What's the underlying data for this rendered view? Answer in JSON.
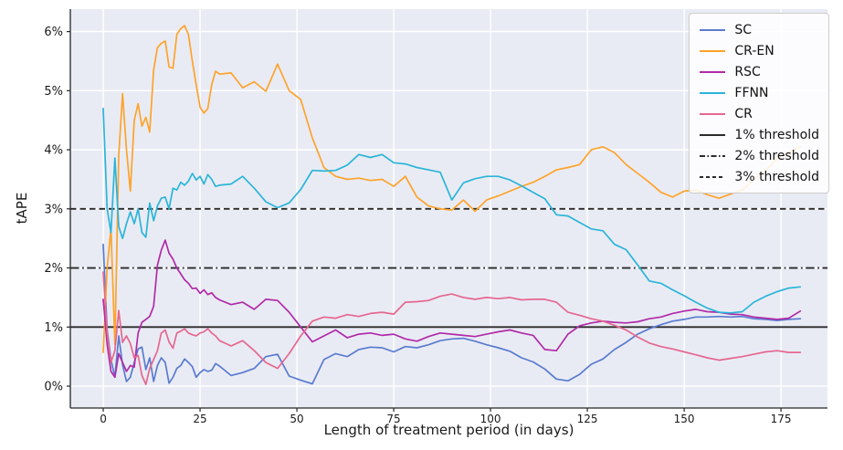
{
  "figure": {
    "background": "#ffffff",
    "plot_background": "#e9ebf4",
    "grid_color": "#ffffff",
    "spine_color": "#262626",
    "tick_color": "#262626",
    "text_color": "#1a1a1a",
    "legend_background": "rgba(255,255,255,0.85)",
    "legend_border": "#cccccc"
  },
  "chart_data": {
    "type": "line",
    "title": "",
    "xlabel": "Length of treatment period (in days)",
    "ylabel": "tAPE",
    "xlim": [
      -8.5,
      187
    ],
    "ylim": [
      -0.37,
      6.38
    ],
    "x_ticks": [
      0,
      25,
      50,
      75,
      100,
      125,
      150,
      175
    ],
    "x_tick_labels": [
      "0",
      "25",
      "50",
      "75",
      "100",
      "125",
      "150",
      "175"
    ],
    "y_ticks": [
      0,
      1,
      2,
      3,
      4,
      5,
      6
    ],
    "y_tick_labels": [
      "0%",
      "1%",
      "2%",
      "3%",
      "4%",
      "5%",
      "6%"
    ],
    "grid": true,
    "legend_position": "upper right",
    "x": [
      0,
      1,
      2,
      3,
      4,
      5,
      6,
      7,
      8,
      9,
      10,
      11,
      12,
      13,
      14,
      15,
      16,
      17,
      18,
      19,
      20,
      21,
      22,
      23,
      24,
      25,
      26,
      27,
      28,
      29,
      30,
      33,
      36,
      39,
      42,
      45,
      48,
      51,
      54,
      57,
      60,
      63,
      66,
      69,
      72,
      75,
      78,
      81,
      84,
      87,
      90,
      93,
      96,
      99,
      102,
      105,
      108,
      111,
      114,
      117,
      120,
      123,
      126,
      129,
      132,
      135,
      138,
      141,
      144,
      147,
      150,
      153,
      156,
      159,
      162,
      165,
      168,
      171,
      174,
      177,
      180
    ],
    "series": [
      {
        "name": "SC",
        "color": "#597bd0",
        "values": [
          2.4,
          0.95,
          0.45,
          0.15,
          0.85,
          0.36,
          0.08,
          0.15,
          0.4,
          0.63,
          0.66,
          0.28,
          0.48,
          0.08,
          0.35,
          0.48,
          0.4,
          0.05,
          0.15,
          0.3,
          0.35,
          0.46,
          0.4,
          0.33,
          0.15,
          0.23,
          0.28,
          0.25,
          0.27,
          0.38,
          0.34,
          0.18,
          0.23,
          0.3,
          0.5,
          0.54,
          0.17,
          0.1,
          0.04,
          0.45,
          0.55,
          0.5,
          0.62,
          0.66,
          0.65,
          0.58,
          0.67,
          0.65,
          0.7,
          0.77,
          0.8,
          0.81,
          0.76,
          0.7,
          0.65,
          0.59,
          0.48,
          0.41,
          0.29,
          0.12,
          0.09,
          0.2,
          0.37,
          0.46,
          0.62,
          0.74,
          0.88,
          0.97,
          1.04,
          1.1,
          1.13,
          1.17,
          1.17,
          1.18,
          1.17,
          1.18,
          1.14,
          1.13,
          1.11,
          1.13,
          1.14
        ]
      },
      {
        "name": "CR-EN",
        "color": "#fda32b",
        "values": [
          0.57,
          2.0,
          2.67,
          0.7,
          3.9,
          4.95,
          4.0,
          3.3,
          4.5,
          4.78,
          4.4,
          4.55,
          4.3,
          5.35,
          5.73,
          5.8,
          5.84,
          5.4,
          5.38,
          5.95,
          6.05,
          6.1,
          5.95,
          5.5,
          5.1,
          4.72,
          4.62,
          4.7,
          5.1,
          5.33,
          5.28,
          5.3,
          5.05,
          5.15,
          4.99,
          5.45,
          5.0,
          4.85,
          4.2,
          3.7,
          3.55,
          3.5,
          3.52,
          3.48,
          3.5,
          3.38,
          3.55,
          3.2,
          3.05,
          3.0,
          2.98,
          3.15,
          2.96,
          3.15,
          3.22,
          3.3,
          3.38,
          3.45,
          3.55,
          3.66,
          3.7,
          3.75,
          4.0,
          4.05,
          3.95,
          3.75,
          3.6,
          3.45,
          3.28,
          3.2,
          3.3,
          3.32,
          3.24,
          3.18,
          3.25,
          3.32,
          3.5,
          3.65,
          3.85,
          3.96,
          4.05
        ]
      },
      {
        "name": "RSC",
        "color": "#b02ba8",
        "values": [
          1.47,
          0.71,
          0.25,
          0.15,
          0.55,
          0.4,
          0.25,
          0.35,
          0.32,
          0.9,
          1.08,
          1.13,
          1.18,
          1.35,
          2.05,
          2.3,
          2.47,
          2.25,
          2.15,
          2.0,
          1.9,
          1.8,
          1.74,
          1.65,
          1.66,
          1.57,
          1.63,
          1.55,
          1.58,
          1.5,
          1.46,
          1.38,
          1.42,
          1.3,
          1.47,
          1.45,
          1.25,
          1.0,
          0.75,
          0.85,
          0.95,
          0.82,
          0.88,
          0.9,
          0.86,
          0.88,
          0.8,
          0.76,
          0.84,
          0.9,
          0.88,
          0.86,
          0.84,
          0.88,
          0.92,
          0.95,
          0.9,
          0.86,
          0.62,
          0.6,
          0.88,
          1.02,
          1.07,
          1.1,
          1.08,
          1.07,
          1.09,
          1.14,
          1.17,
          1.23,
          1.27,
          1.3,
          1.26,
          1.25,
          1.22,
          1.21,
          1.17,
          1.15,
          1.13,
          1.15,
          1.27
        ]
      },
      {
        "name": "FFNN",
        "color": "#2ab5d8",
        "values": [
          4.7,
          3.0,
          2.6,
          3.86,
          2.7,
          2.5,
          2.75,
          2.95,
          2.75,
          3.0,
          2.6,
          2.52,
          3.1,
          2.8,
          3.05,
          3.18,
          3.2,
          3.0,
          3.35,
          3.32,
          3.45,
          3.4,
          3.47,
          3.6,
          3.49,
          3.55,
          3.42,
          3.58,
          3.5,
          3.38,
          3.4,
          3.42,
          3.55,
          3.35,
          3.12,
          3.02,
          3.1,
          3.33,
          3.65,
          3.64,
          3.65,
          3.74,
          3.92,
          3.87,
          3.92,
          3.78,
          3.76,
          3.7,
          3.66,
          3.62,
          3.15,
          3.44,
          3.51,
          3.55,
          3.55,
          3.49,
          3.39,
          3.28,
          3.17,
          2.9,
          2.88,
          2.77,
          2.66,
          2.63,
          2.4,
          2.31,
          2.05,
          1.78,
          1.74,
          1.63,
          1.53,
          1.42,
          1.32,
          1.25,
          1.24,
          1.26,
          1.42,
          1.52,
          1.6,
          1.66,
          1.68
        ]
      },
      {
        "name": "CR",
        "color": "#e56790",
        "values": [
          1.93,
          0.9,
          0.4,
          0.6,
          1.28,
          0.74,
          0.85,
          0.72,
          0.48,
          0.52,
          0.18,
          0.03,
          0.3,
          0.45,
          0.6,
          0.9,
          0.95,
          0.75,
          0.64,
          0.9,
          0.93,
          0.97,
          0.9,
          0.87,
          0.85,
          0.9,
          0.92,
          0.97,
          0.9,
          0.85,
          0.77,
          0.68,
          0.77,
          0.6,
          0.4,
          0.3,
          0.55,
          0.85,
          1.1,
          1.17,
          1.15,
          1.21,
          1.18,
          1.23,
          1.25,
          1.22,
          1.42,
          1.43,
          1.45,
          1.52,
          1.56,
          1.5,
          1.47,
          1.5,
          1.48,
          1.5,
          1.46,
          1.47,
          1.47,
          1.42,
          1.25,
          1.2,
          1.14,
          1.1,
          1.03,
          0.95,
          0.83,
          0.73,
          0.67,
          0.63,
          0.58,
          0.53,
          0.48,
          0.44,
          0.47,
          0.5,
          0.54,
          0.58,
          0.6,
          0.57,
          0.57
        ]
      }
    ],
    "thresholds": [
      {
        "label": "1% threshold",
        "value": 1,
        "line_style": "solid",
        "color": "#2b2b2b"
      },
      {
        "label": "2% threshold",
        "value": 2,
        "line_style": "dashdot",
        "color": "#2b2b2b"
      },
      {
        "label": "3% threshold",
        "value": 3,
        "line_style": "dashed",
        "color": "#2b2b2b"
      }
    ]
  }
}
